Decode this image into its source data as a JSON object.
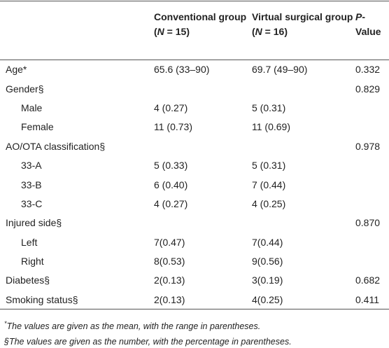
{
  "table": {
    "columns": [
      [
        {
          "text": "Conventional group (",
          "italic": false
        },
        {
          "text": "N",
          "italic": true
        },
        {
          "text": " = 15)",
          "italic": false
        }
      ],
      [
        {
          "text": "Virtual surgical group (",
          "italic": false
        },
        {
          "text": "N",
          "italic": true
        },
        {
          "text": " = 16)",
          "italic": false
        }
      ],
      [
        {
          "text": "P",
          "italic": true
        },
        {
          "text": "-Value",
          "italic": false
        }
      ]
    ],
    "rows": [
      {
        "label": "Age*",
        "conventional": "65.6 (33–90)",
        "virtual": "69.7 (49–90)",
        "p": "0.332",
        "sub": false
      },
      {
        "label": "Gender§",
        "p": "0.829",
        "sub": false
      },
      {
        "label": "Male",
        "conventional": "4 (0.27)",
        "virtual": "5 (0.31)",
        "sub": true
      },
      {
        "label": "Female",
        "conventional": "11 (0.73)",
        "virtual": "11 (0.69)",
        "sub": true
      },
      {
        "label": "AO/OTA classification§",
        "p": "0.978",
        "sub": false
      },
      {
        "label": "33-A",
        "conventional": "5 (0.33)",
        "virtual": "5 (0.31)",
        "sub": true
      },
      {
        "label": "33-B",
        "conventional": "6 (0.40)",
        "virtual": "7 (0.44)",
        "sub": true
      },
      {
        "label": "33-C",
        "conventional": "4 (0.27)",
        "virtual": "4 (0.25)",
        "sub": true
      },
      {
        "label": "Injured side§",
        "p": "0.870",
        "sub": false
      },
      {
        "label": "Left",
        "conventional": "7(0.47)",
        "virtual": "7(0.44)",
        "sub": true
      },
      {
        "label": "Right",
        "conventional": "8(0.53)",
        "virtual": "9(0.56)",
        "sub": true
      },
      {
        "label": "Diabetes§",
        "conventional": "2(0.13)",
        "virtual": "3(0.19)",
        "p": "0.682",
        "sub": false
      },
      {
        "label": "Smoking status§",
        "conventional": "2(0.13)",
        "virtual": "4(0.25)",
        "p": "0.411",
        "sub": false
      }
    ]
  },
  "footnotes": [
    {
      "mark": "*",
      "text": "The values are given as the mean, with the range in parentheses."
    },
    {
      "text": "§The values are given as the number, with the percentage in parentheses."
    }
  ]
}
